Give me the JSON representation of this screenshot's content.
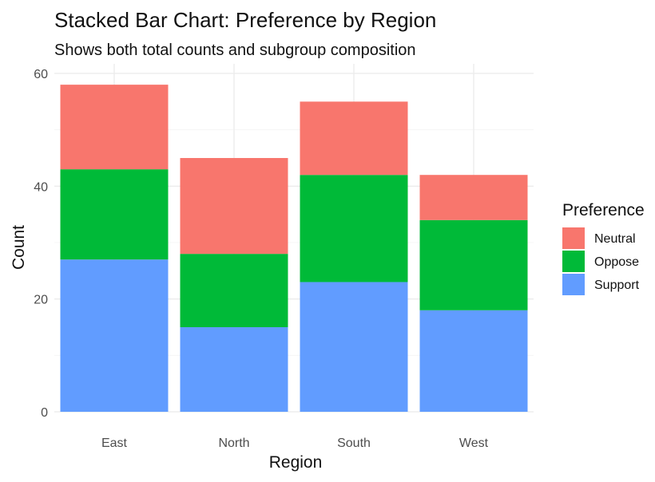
{
  "chart_data": {
    "type": "bar",
    "stacked": true,
    "title": "Stacked Bar Chart: Preference by Region",
    "subtitle": "Shows both total counts and subgroup composition",
    "xlabel": "Region",
    "ylabel": "Count",
    "categories": [
      "East",
      "North",
      "South",
      "West"
    ],
    "series": [
      {
        "name": "Support",
        "color": "#619CFF",
        "values": [
          27,
          15,
          23,
          18
        ]
      },
      {
        "name": "Oppose",
        "color": "#00BA38",
        "values": [
          16,
          13,
          19,
          16
        ]
      },
      {
        "name": "Neutral",
        "color": "#F8766D",
        "values": [
          15,
          17,
          13,
          8
        ]
      }
    ],
    "ylim": [
      0,
      60
    ],
    "yticks": [
      "0",
      "20",
      "40",
      "60"
    ],
    "grid": true,
    "legend": {
      "title": "Preference",
      "position": "right",
      "items": [
        "Neutral",
        "Oppose",
        "Support"
      ]
    }
  }
}
